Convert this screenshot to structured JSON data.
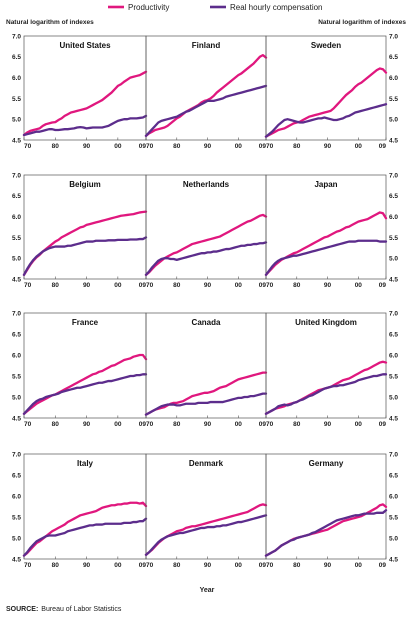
{
  "legend": {
    "productivity": "Productivity",
    "compensation": "Real hourly compensation"
  },
  "y_axis_label_left": "Natural logarithm of indexes",
  "y_axis_label_right": "Natural logarithm of indexes",
  "x_axis_label": "Year",
  "source": {
    "label": "SOURCE:",
    "text": "Bureau of Labor Statistics"
  },
  "colors": {
    "productivity": "#e0177e",
    "compensation": "#5c2d8c"
  },
  "chart_data": {
    "type": "line",
    "x": [
      1970,
      1971,
      1972,
      1973,
      1974,
      1975,
      1976,
      1977,
      1978,
      1979,
      1980,
      1981,
      1982,
      1983,
      1984,
      1985,
      1986,
      1987,
      1988,
      1989,
      1990,
      1991,
      1992,
      1993,
      1994,
      1995,
      1996,
      1997,
      1998,
      1999,
      2000,
      2001,
      2002,
      2003,
      2004,
      2005,
      2006,
      2007,
      2008,
      2009
    ],
    "x_tick_labels": [
      "70",
      "80",
      "90",
      "00",
      "09"
    ],
    "y_ticks": [
      "4.5",
      "5.0",
      "5.5",
      "6.0",
      "6.5",
      "7.0"
    ],
    "ylim": [
      4.5,
      7.0
    ],
    "xlim": [
      1970,
      2009
    ],
    "ylabel": "Natural logarithm of indexes",
    "xlabel": "Year",
    "panels": [
      {
        "title": "United States",
        "productivity": [
          4.62,
          4.68,
          4.72,
          4.74,
          4.76,
          4.78,
          4.84,
          4.88,
          4.9,
          4.92,
          4.93,
          4.98,
          5.02,
          5.08,
          5.12,
          5.16,
          5.18,
          5.2,
          5.22,
          5.24,
          5.26,
          5.3,
          5.34,
          5.38,
          5.42,
          5.46,
          5.52,
          5.58,
          5.64,
          5.72,
          5.8,
          5.84,
          5.9,
          5.95,
          6.0,
          6.02,
          6.04,
          6.06,
          6.1,
          6.14
        ],
        "compensation": [
          4.62,
          4.64,
          4.66,
          4.68,
          4.7,
          4.7,
          4.72,
          4.74,
          4.76,
          4.76,
          4.74,
          4.74,
          4.75,
          4.76,
          4.76,
          4.77,
          4.78,
          4.8,
          4.81,
          4.8,
          4.78,
          4.79,
          4.8,
          4.8,
          4.8,
          4.8,
          4.82,
          4.84,
          4.88,
          4.92,
          4.96,
          4.98,
          5.0,
          5.0,
          5.02,
          5.02,
          5.02,
          5.03,
          5.04,
          5.08
        ]
      },
      {
        "title": "Finland",
        "productivity": [
          4.6,
          4.66,
          4.7,
          4.74,
          4.76,
          4.78,
          4.8,
          4.84,
          4.9,
          4.96,
          5.02,
          5.06,
          5.12,
          5.18,
          5.22,
          5.26,
          5.3,
          5.34,
          5.4,
          5.44,
          5.46,
          5.5,
          5.56,
          5.64,
          5.7,
          5.76,
          5.82,
          5.88,
          5.94,
          6.0,
          6.06,
          6.1,
          6.16,
          6.22,
          6.28,
          6.34,
          6.42,
          6.5,
          6.54,
          6.48
        ],
        "compensation": [
          4.6,
          4.68,
          4.76,
          4.84,
          4.92,
          4.96,
          4.98,
          5.0,
          5.02,
          5.04,
          5.06,
          5.1,
          5.14,
          5.18,
          5.2,
          5.24,
          5.28,
          5.32,
          5.36,
          5.4,
          5.44,
          5.44,
          5.44,
          5.46,
          5.48,
          5.5,
          5.54,
          5.56,
          5.58,
          5.6,
          5.62,
          5.64,
          5.66,
          5.68,
          5.7,
          5.72,
          5.74,
          5.76,
          5.78,
          5.8
        ]
      },
      {
        "title": "Sweden",
        "productivity": [
          4.58,
          4.62,
          4.66,
          4.7,
          4.74,
          4.76,
          4.78,
          4.82,
          4.86,
          4.9,
          4.92,
          4.94,
          4.98,
          5.02,
          5.06,
          5.08,
          5.1,
          5.12,
          5.14,
          5.16,
          5.18,
          5.2,
          5.26,
          5.34,
          5.42,
          5.5,
          5.58,
          5.64,
          5.7,
          5.78,
          5.84,
          5.88,
          5.94,
          6.0,
          6.06,
          6.12,
          6.18,
          6.22,
          6.2,
          6.12
        ],
        "compensation": [
          4.58,
          4.64,
          4.7,
          4.78,
          4.86,
          4.92,
          4.98,
          5.0,
          4.98,
          4.96,
          4.94,
          4.92,
          4.92,
          4.94,
          4.96,
          4.98,
          5.0,
          5.02,
          5.02,
          5.04,
          5.02,
          5.0,
          4.98,
          4.98,
          5.0,
          5.02,
          5.06,
          5.08,
          5.12,
          5.16,
          5.18,
          5.2,
          5.22,
          5.24,
          5.26,
          5.28,
          5.3,
          5.32,
          5.34,
          5.36
        ]
      },
      {
        "title": "Belgium",
        "productivity": [
          4.6,
          4.72,
          4.84,
          4.94,
          5.02,
          5.08,
          5.16,
          5.22,
          5.28,
          5.34,
          5.4,
          5.44,
          5.5,
          5.54,
          5.58,
          5.62,
          5.66,
          5.7,
          5.74,
          5.76,
          5.8,
          5.82,
          5.84,
          5.86,
          5.88,
          5.9,
          5.92,
          5.94,
          5.96,
          5.98,
          6.0,
          6.02,
          6.03,
          6.04,
          6.05,
          6.06,
          6.08,
          6.1,
          6.11,
          6.12
        ],
        "compensation": [
          4.6,
          4.74,
          4.86,
          4.96,
          5.04,
          5.1,
          5.16,
          5.2,
          5.24,
          5.26,
          5.28,
          5.28,
          5.28,
          5.28,
          5.3,
          5.3,
          5.32,
          5.34,
          5.36,
          5.38,
          5.4,
          5.4,
          5.4,
          5.42,
          5.42,
          5.42,
          5.42,
          5.43,
          5.43,
          5.43,
          5.44,
          5.44,
          5.44,
          5.44,
          5.45,
          5.45,
          5.45,
          5.46,
          5.46,
          5.5
        ]
      },
      {
        "title": "Netherlands",
        "productivity": [
          4.6,
          4.66,
          4.74,
          4.82,
          4.88,
          4.94,
          5.0,
          5.04,
          5.08,
          5.12,
          5.14,
          5.18,
          5.22,
          5.26,
          5.3,
          5.34,
          5.36,
          5.38,
          5.4,
          5.42,
          5.44,
          5.46,
          5.48,
          5.5,
          5.52,
          5.56,
          5.6,
          5.64,
          5.68,
          5.72,
          5.76,
          5.8,
          5.84,
          5.88,
          5.9,
          5.94,
          5.98,
          6.02,
          6.04,
          6.0
        ],
        "compensation": [
          4.6,
          4.68,
          4.78,
          4.86,
          4.94,
          4.98,
          5.0,
          5.0,
          4.98,
          4.98,
          4.96,
          4.98,
          5.0,
          5.02,
          5.04,
          5.06,
          5.08,
          5.1,
          5.12,
          5.12,
          5.14,
          5.14,
          5.16,
          5.16,
          5.18,
          5.2,
          5.22,
          5.22,
          5.24,
          5.26,
          5.28,
          5.3,
          5.3,
          5.32,
          5.32,
          5.34,
          5.34,
          5.36,
          5.36,
          5.38
        ]
      },
      {
        "title": "Japan",
        "productivity": [
          4.6,
          4.68,
          4.76,
          4.84,
          4.9,
          4.96,
          5.0,
          5.04,
          5.08,
          5.12,
          5.14,
          5.18,
          5.22,
          5.26,
          5.3,
          5.34,
          5.38,
          5.42,
          5.46,
          5.5,
          5.52,
          5.56,
          5.6,
          5.64,
          5.66,
          5.7,
          5.74,
          5.76,
          5.8,
          5.84,
          5.88,
          5.9,
          5.92,
          5.94,
          5.98,
          6.02,
          6.06,
          6.1,
          6.08,
          5.96
        ],
        "compensation": [
          4.6,
          4.7,
          4.8,
          4.88,
          4.94,
          4.98,
          5.0,
          5.02,
          5.04,
          5.06,
          5.06,
          5.08,
          5.1,
          5.12,
          5.14,
          5.16,
          5.18,
          5.2,
          5.22,
          5.24,
          5.26,
          5.28,
          5.3,
          5.32,
          5.34,
          5.36,
          5.38,
          5.4,
          5.4,
          5.4,
          5.42,
          5.42,
          5.42,
          5.42,
          5.42,
          5.42,
          5.42,
          5.4,
          5.4,
          5.4
        ]
      },
      {
        "title": "France",
        "productivity": [
          4.6,
          4.66,
          4.72,
          4.78,
          4.84,
          4.88,
          4.92,
          4.96,
          5.0,
          5.04,
          5.06,
          5.1,
          5.14,
          5.18,
          5.22,
          5.26,
          5.3,
          5.34,
          5.38,
          5.42,
          5.46,
          5.5,
          5.54,
          5.56,
          5.6,
          5.62,
          5.66,
          5.7,
          5.74,
          5.76,
          5.8,
          5.84,
          5.88,
          5.9,
          5.92,
          5.96,
          5.98,
          6.0,
          6.0,
          5.9
        ],
        "compensation": [
          4.6,
          4.68,
          4.76,
          4.84,
          4.9,
          4.94,
          4.96,
          5.0,
          5.02,
          5.04,
          5.06,
          5.08,
          5.12,
          5.14,
          5.16,
          5.18,
          5.2,
          5.22,
          5.22,
          5.24,
          5.26,
          5.28,
          5.3,
          5.32,
          5.34,
          5.34,
          5.36,
          5.38,
          5.38,
          5.4,
          5.42,
          5.44,
          5.46,
          5.48,
          5.5,
          5.5,
          5.52,
          5.52,
          5.54,
          5.54
        ]
      },
      {
        "title": "Canada",
        "productivity": [
          4.58,
          4.62,
          4.66,
          4.7,
          4.72,
          4.74,
          4.76,
          4.8,
          4.84,
          4.86,
          4.86,
          4.88,
          4.9,
          4.94,
          4.98,
          5.02,
          5.04,
          5.06,
          5.08,
          5.1,
          5.1,
          5.12,
          5.14,
          5.18,
          5.22,
          5.24,
          5.26,
          5.3,
          5.34,
          5.38,
          5.42,
          5.44,
          5.46,
          5.48,
          5.5,
          5.52,
          5.54,
          5.56,
          5.58,
          5.58
        ],
        "compensation": [
          4.58,
          4.62,
          4.66,
          4.7,
          4.74,
          4.78,
          4.8,
          4.82,
          4.82,
          4.82,
          4.8,
          4.8,
          4.82,
          4.84,
          4.84,
          4.84,
          4.84,
          4.86,
          4.86,
          4.86,
          4.86,
          4.88,
          4.88,
          4.88,
          4.88,
          4.88,
          4.9,
          4.92,
          4.94,
          4.96,
          4.98,
          4.98,
          5.0,
          5.0,
          5.02,
          5.02,
          5.04,
          5.06,
          5.08,
          5.08
        ]
      },
      {
        "title": "United Kingdom",
        "productivity": [
          4.6,
          4.64,
          4.68,
          4.72,
          4.74,
          4.76,
          4.78,
          4.82,
          4.84,
          4.86,
          4.88,
          4.92,
          4.96,
          5.0,
          5.04,
          5.08,
          5.12,
          5.16,
          5.18,
          5.2,
          5.22,
          5.24,
          5.28,
          5.32,
          5.36,
          5.4,
          5.42,
          5.44,
          5.48,
          5.52,
          5.56,
          5.6,
          5.64,
          5.66,
          5.7,
          5.74,
          5.78,
          5.82,
          5.84,
          5.82
        ],
        "compensation": [
          4.6,
          4.64,
          4.68,
          4.72,
          4.78,
          4.8,
          4.82,
          4.8,
          4.82,
          4.86,
          4.88,
          4.92,
          4.94,
          4.98,
          5.02,
          5.04,
          5.08,
          5.12,
          5.16,
          5.2,
          5.22,
          5.24,
          5.26,
          5.26,
          5.28,
          5.28,
          5.3,
          5.32,
          5.34,
          5.36,
          5.4,
          5.42,
          5.44,
          5.46,
          5.48,
          5.5,
          5.5,
          5.52,
          5.54,
          5.54
        ]
      },
      {
        "title": "Italy",
        "productivity": [
          4.58,
          4.64,
          4.72,
          4.8,
          4.88,
          4.92,
          4.98,
          5.04,
          5.1,
          5.16,
          5.2,
          5.24,
          5.28,
          5.32,
          5.38,
          5.42,
          5.46,
          5.5,
          5.54,
          5.56,
          5.58,
          5.6,
          5.62,
          5.64,
          5.68,
          5.72,
          5.74,
          5.76,
          5.78,
          5.78,
          5.8,
          5.8,
          5.82,
          5.82,
          5.84,
          5.84,
          5.84,
          5.82,
          5.84,
          5.76
        ],
        "compensation": [
          4.58,
          4.66,
          4.76,
          4.84,
          4.92,
          4.96,
          5.0,
          5.04,
          5.06,
          5.06,
          5.06,
          5.08,
          5.1,
          5.12,
          5.16,
          5.18,
          5.2,
          5.22,
          5.24,
          5.26,
          5.28,
          5.3,
          5.3,
          5.32,
          5.32,
          5.32,
          5.34,
          5.34,
          5.34,
          5.34,
          5.34,
          5.34,
          5.36,
          5.36,
          5.36,
          5.38,
          5.38,
          5.4,
          5.4,
          5.46
        ]
      },
      {
        "title": "Denmark",
        "productivity": [
          4.6,
          4.66,
          4.72,
          4.8,
          4.88,
          4.94,
          5.0,
          5.04,
          5.08,
          5.12,
          5.16,
          5.18,
          5.2,
          5.24,
          5.26,
          5.28,
          5.28,
          5.3,
          5.32,
          5.34,
          5.36,
          5.38,
          5.4,
          5.42,
          5.44,
          5.46,
          5.48,
          5.5,
          5.52,
          5.54,
          5.56,
          5.58,
          5.6,
          5.62,
          5.66,
          5.7,
          5.74,
          5.78,
          5.8,
          5.78
        ],
        "compensation": [
          4.6,
          4.66,
          4.74,
          4.82,
          4.9,
          4.96,
          5.0,
          5.04,
          5.06,
          5.08,
          5.1,
          5.12,
          5.12,
          5.14,
          5.16,
          5.18,
          5.2,
          5.22,
          5.24,
          5.24,
          5.26,
          5.26,
          5.26,
          5.28,
          5.28,
          5.3,
          5.3,
          5.32,
          5.34,
          5.36,
          5.38,
          5.38,
          5.4,
          5.42,
          5.44,
          5.46,
          5.48,
          5.5,
          5.52,
          5.54
        ]
      },
      {
        "title": "Germany",
        "productivity": [
          4.58,
          4.62,
          4.66,
          4.7,
          4.76,
          4.82,
          4.86,
          4.9,
          4.94,
          4.98,
          5.0,
          5.02,
          5.04,
          5.06,
          5.08,
          5.1,
          5.12,
          5.14,
          5.16,
          5.18,
          5.2,
          5.24,
          5.28,
          5.32,
          5.36,
          5.4,
          5.42,
          5.44,
          5.46,
          5.48,
          5.5,
          5.52,
          5.56,
          5.6,
          5.64,
          5.68,
          5.72,
          5.78,
          5.8,
          5.74
        ],
        "compensation": [
          4.58,
          4.62,
          4.66,
          4.7,
          4.76,
          4.82,
          4.86,
          4.9,
          4.94,
          4.96,
          5.0,
          5.02,
          5.04,
          5.06,
          5.08,
          5.12,
          5.14,
          5.18,
          5.22,
          5.26,
          5.3,
          5.34,
          5.38,
          5.42,
          5.44,
          5.46,
          5.48,
          5.5,
          5.52,
          5.54,
          5.54,
          5.56,
          5.58,
          5.58,
          5.58,
          5.58,
          5.6,
          5.6,
          5.6,
          5.66
        ]
      }
    ]
  }
}
